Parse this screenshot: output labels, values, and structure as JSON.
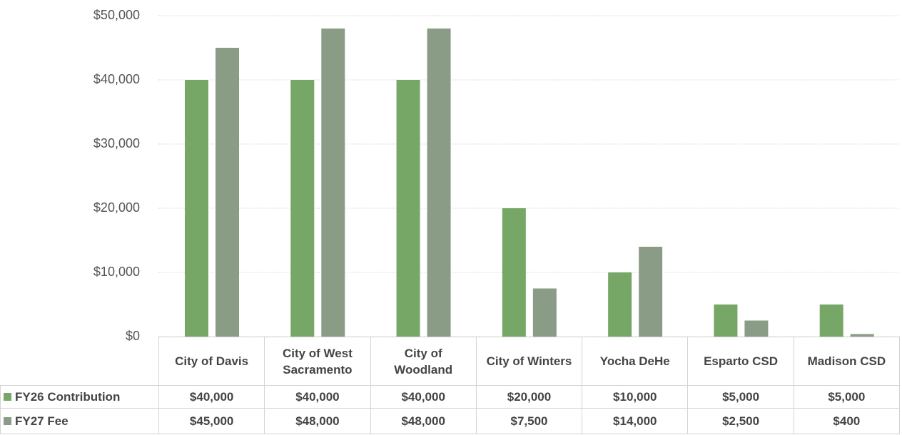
{
  "chart_data": {
    "type": "bar",
    "categories": [
      "City of Davis",
      "City of West Sacramento",
      "City of Woodland",
      "City of Winters",
      "Yocha DeHe",
      "Esparto CSD",
      "Madison CSD"
    ],
    "series": [
      {
        "name": "FY26 Contribution",
        "color": "#77a766",
        "values": [
          40000,
          40000,
          40000,
          20000,
          10000,
          5000,
          5000
        ],
        "value_labels": [
          "$40,000",
          "$40,000",
          "$40,000",
          "$20,000",
          "$10,000",
          "$5,000",
          "$5,000"
        ]
      },
      {
        "name": "FY27 Fee",
        "color": "#8b9c86",
        "values": [
          45000,
          48000,
          48000,
          7500,
          14000,
          2500,
          400
        ],
        "value_labels": [
          "$45,000",
          "$48,000",
          "$48,000",
          "$7,500",
          "$14,000",
          "$2,500",
          "$400"
        ]
      }
    ],
    "ylim": [
      0,
      50000
    ],
    "yticks": [
      {
        "value": 0,
        "label": "$0"
      },
      {
        "value": 10000,
        "label": "$10,000"
      },
      {
        "value": 20000,
        "label": "$20,000"
      },
      {
        "value": 30000,
        "label": "$30,000"
      },
      {
        "value": 40000,
        "label": "$40,000"
      },
      {
        "value": 50000,
        "label": "$50,000"
      }
    ],
    "grid": true,
    "data_table": true
  }
}
